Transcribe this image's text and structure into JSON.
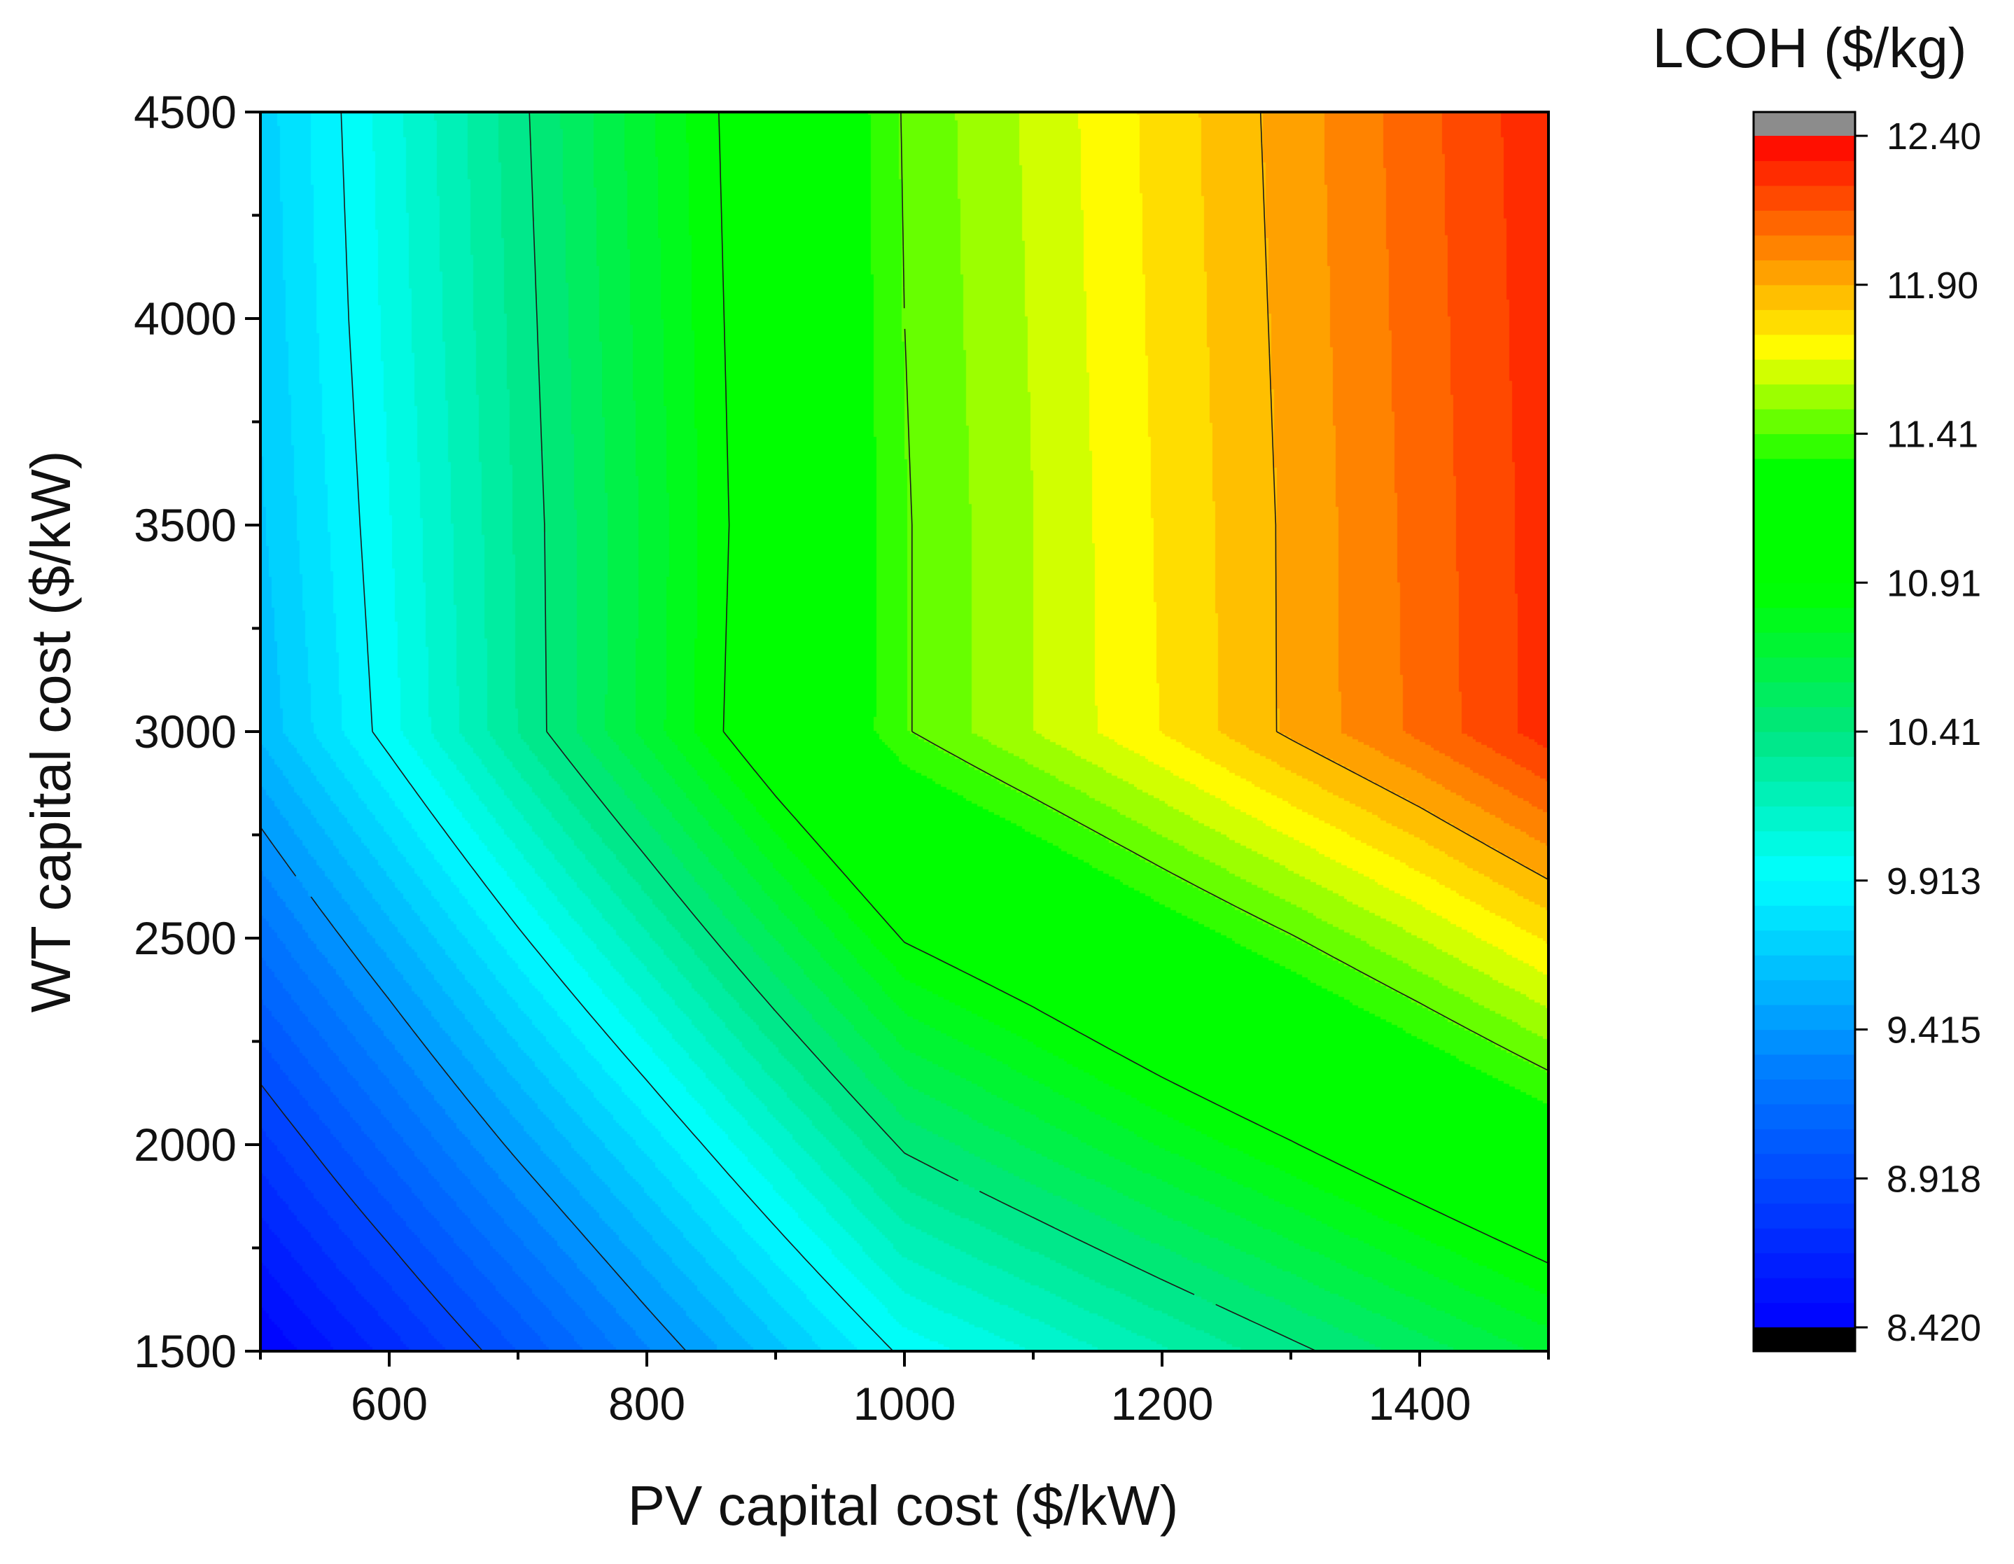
{
  "chart_data": {
    "type": "heatmap",
    "subtype": "filled-contour",
    "xlabel": "PV capital cost ($/kW)",
    "ylabel": "WT capital cost ($/kW)",
    "xlim": [
      500,
      1500
    ],
    "ylim": [
      1500,
      4500
    ],
    "x_ticks": [
      600,
      800,
      1000,
      1200,
      1400
    ],
    "y_ticks": [
      1500,
      2000,
      2500,
      3000,
      3500,
      4000,
      4500
    ],
    "x": [
      500,
      600,
      700,
      800,
      900,
      1000,
      1100,
      1200,
      1300,
      1400,
      1500
    ],
    "y": [
      1500,
      2000,
      2500,
      3000,
      3500,
      4000,
      4500
    ],
    "z": [
      [
        8.42,
        8.7,
        9.0,
        9.32,
        9.63,
        9.94,
        10.08,
        10.23,
        10.38,
        10.53,
        10.68
      ],
      [
        8.8,
        9.12,
        9.45,
        9.77,
        10.1,
        10.43,
        10.59,
        10.75,
        10.9,
        11.06,
        11.22
      ],
      [
        9.2,
        9.54,
        9.89,
        10.23,
        10.58,
        10.92,
        11.07,
        11.24,
        11.4,
        11.57,
        11.75
      ],
      [
        9.6,
        9.96,
        10.33,
        10.69,
        11.06,
        11.4,
        11.57,
        11.74,
        11.92,
        12.09,
        12.28
      ],
      [
        9.65,
        9.99,
        10.34,
        10.68,
        11.04,
        11.4,
        11.57,
        11.75,
        11.92,
        12.1,
        12.28
      ],
      [
        9.68,
        10.02,
        10.36,
        10.7,
        11.05,
        11.41,
        11.58,
        11.76,
        11.93,
        12.11,
        12.29
      ],
      [
        9.7,
        10.04,
        10.38,
        10.72,
        11.06,
        11.42,
        11.59,
        11.77,
        11.94,
        12.12,
        12.3
      ]
    ],
    "colorbar": {
      "title": "LCOH ($/kg)",
      "min": 8.42,
      "max": 12.4,
      "levels": 48,
      "tick_labels": [
        "12.40",
        "11.90",
        "11.41",
        "10.91",
        "10.41",
        "9.913",
        "9.415",
        "8.918",
        "8.420"
      ],
      "over_color": "#8c8c8c",
      "under_color": "#000000"
    },
    "contour_lines": [
      8.918,
      9.415,
      9.913,
      10.41,
      10.91,
      11.41,
      11.9
    ],
    "grid": false
  }
}
